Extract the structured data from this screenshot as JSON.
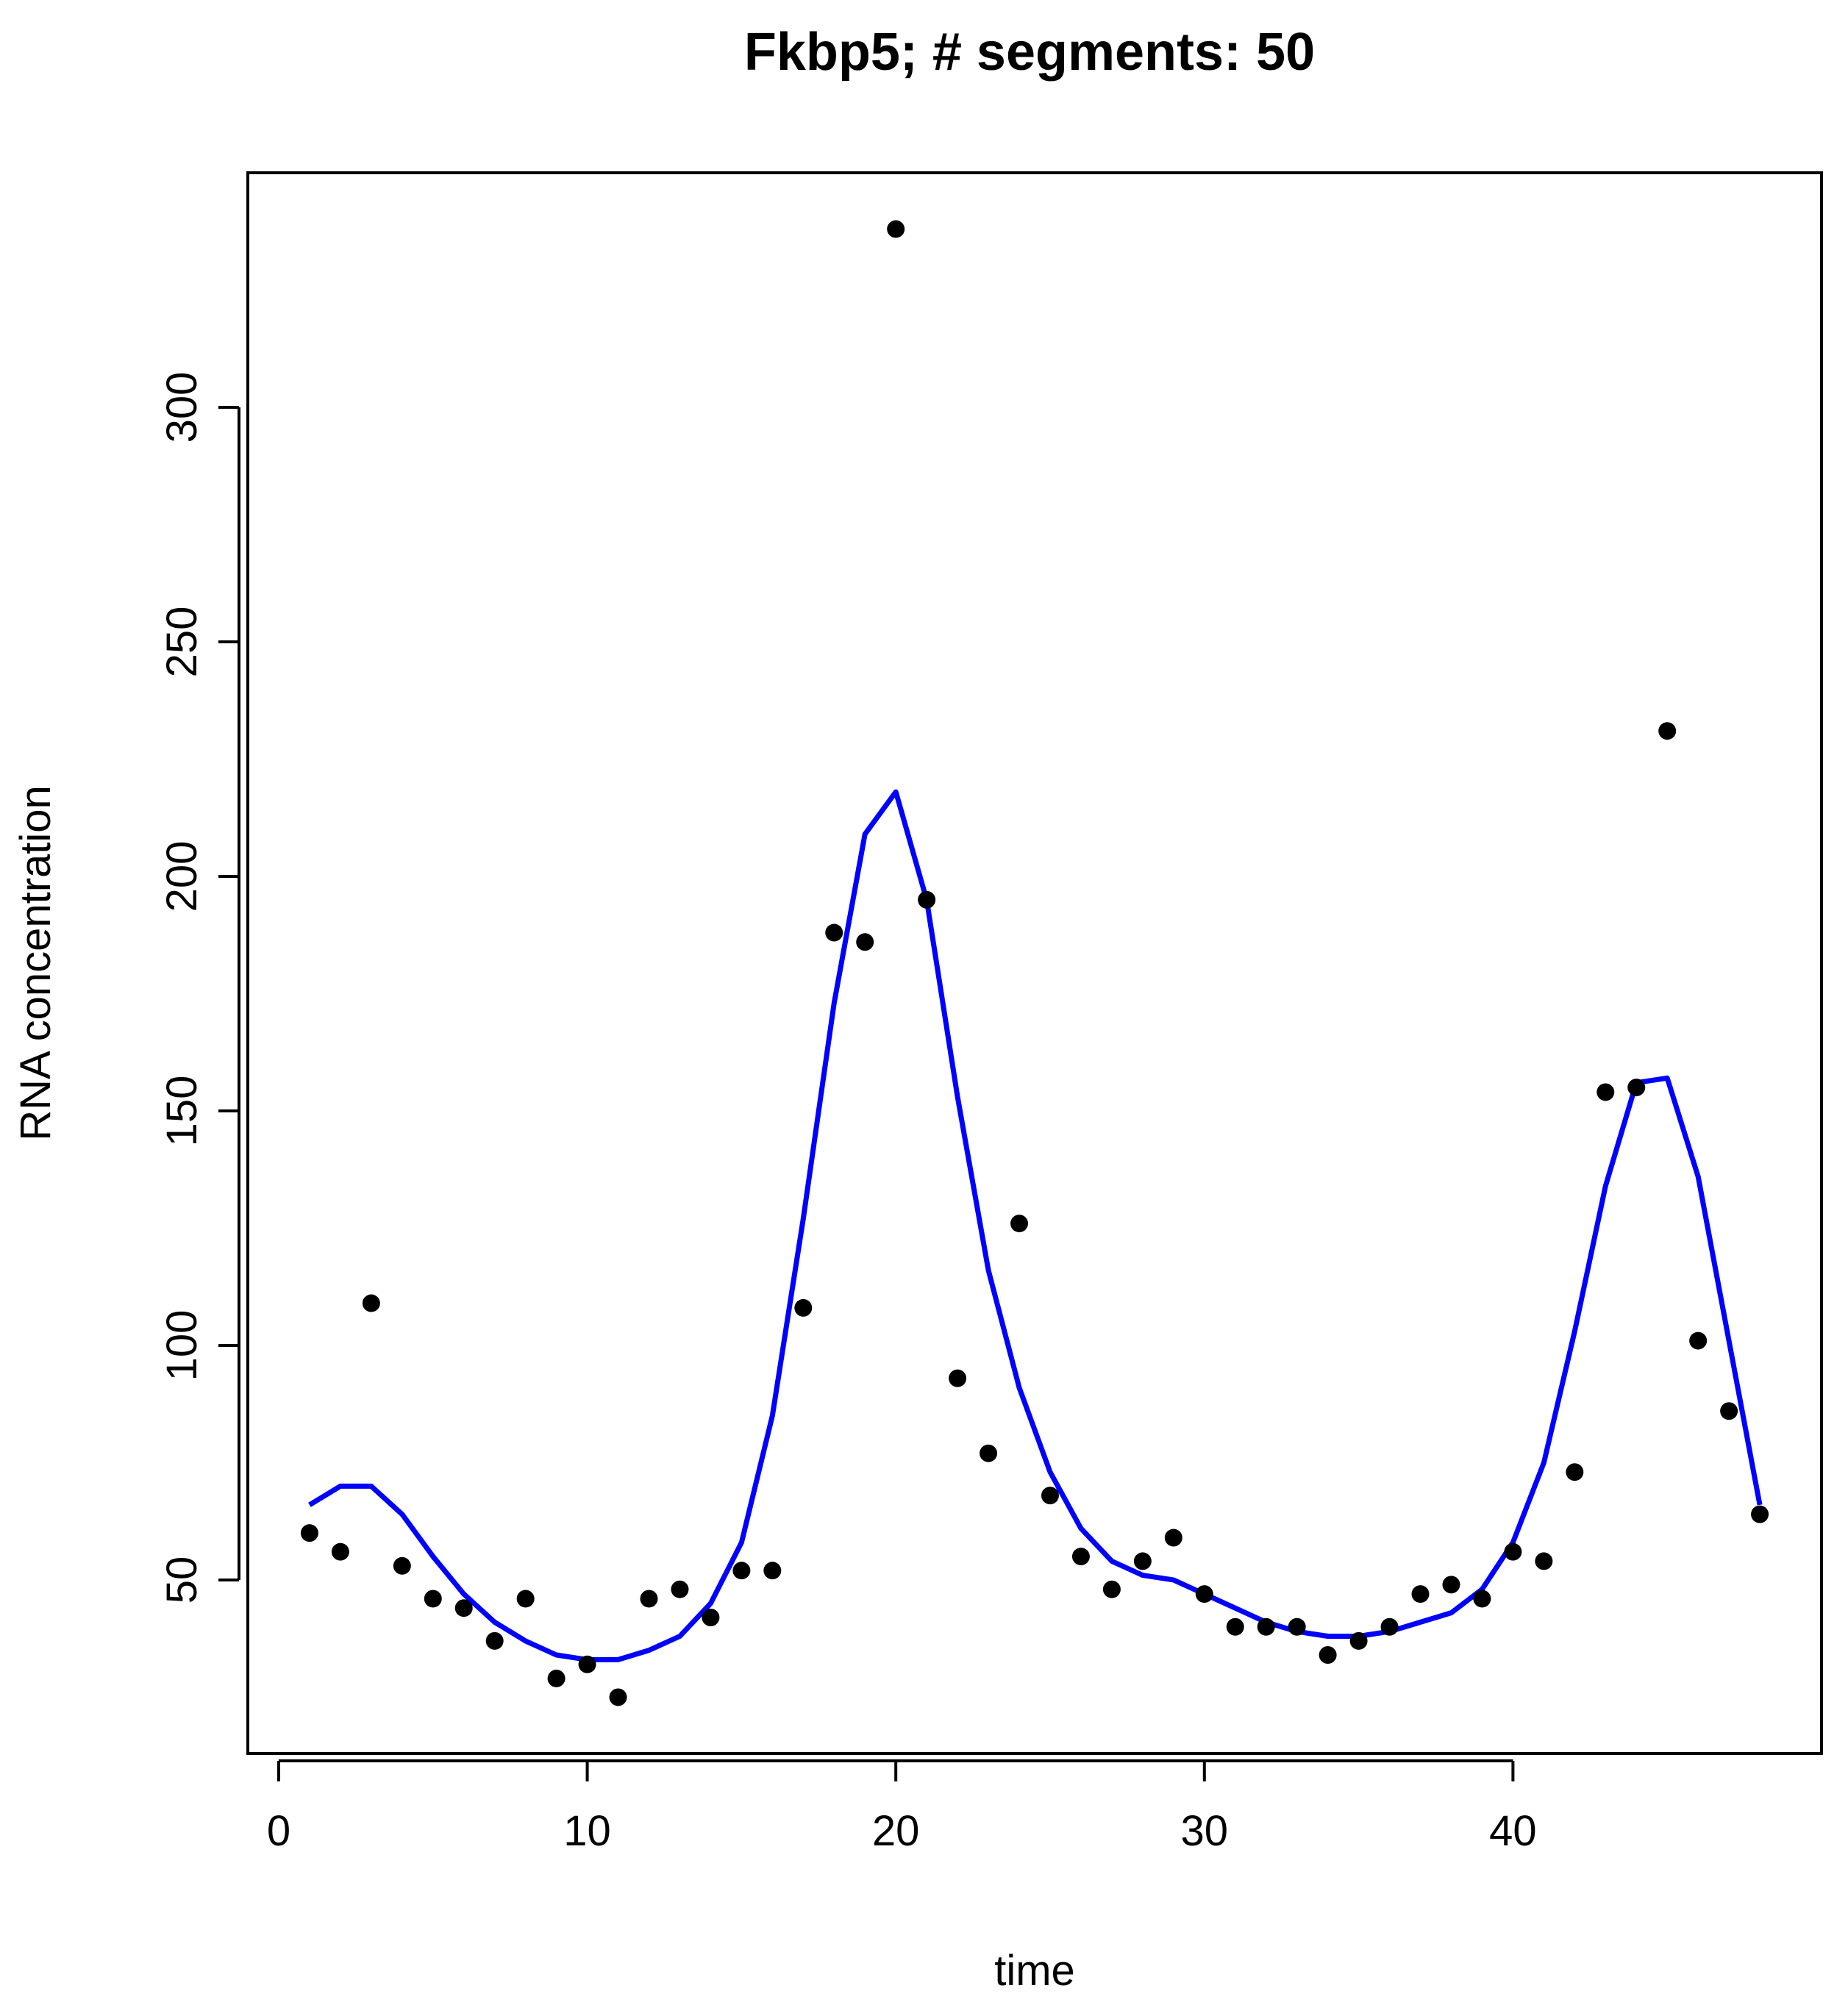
{
  "chart_data": {
    "type": "scatter",
    "title": "Fkbp5; # segments: 50",
    "xlabel": "time",
    "ylabel": "RNA concentration",
    "xlim": [
      -1,
      50
    ],
    "ylim": [
      13,
      350
    ],
    "xticks": [
      0,
      10,
      20,
      30,
      40
    ],
    "yticks": [
      50,
      100,
      150,
      200,
      250,
      300
    ],
    "grid": false,
    "legend": "none",
    "colors": {
      "points": "#000000",
      "fit_line": "#0000ff",
      "frame": "#000000"
    },
    "series": [
      {
        "kind": "points",
        "x": [
          1,
          2,
          3,
          4,
          5,
          6,
          7,
          8,
          9,
          10,
          11,
          12,
          13,
          14,
          15,
          16,
          17,
          18,
          19,
          20,
          21,
          22,
          23,
          24,
          25,
          26,
          27,
          28,
          29,
          30,
          31,
          32,
          33,
          34,
          35,
          36,
          37,
          38,
          39,
          40,
          41,
          42,
          43,
          44,
          45,
          46,
          47,
          48
        ],
        "y": [
          60,
          56,
          109,
          53,
          46,
          44,
          37,
          46,
          29,
          32,
          25,
          46,
          48,
          42,
          52,
          52,
          108,
          188,
          186,
          338,
          195,
          93,
          77,
          126,
          68,
          55,
          48,
          54,
          59,
          47,
          40,
          40,
          40,
          34,
          37,
          40,
          47,
          49,
          46,
          56,
          54,
          73,
          154,
          155,
          231,
          101,
          86,
          64
        ]
      },
      {
        "kind": "line",
        "x": [
          1,
          2,
          3,
          4,
          5,
          6,
          7,
          8,
          9,
          10,
          11,
          12,
          13,
          14,
          15,
          16,
          17,
          18,
          19,
          20,
          21,
          22,
          23,
          24,
          25,
          26,
          27,
          28,
          29,
          30,
          31,
          32,
          33,
          34,
          35,
          36,
          37,
          38,
          39,
          40,
          41,
          42,
          43,
          44,
          45,
          46,
          47,
          48
        ],
        "y": [
          66,
          70,
          70,
          64,
          55,
          47,
          41,
          37,
          34,
          33,
          33,
          35,
          38,
          45,
          58,
          85,
          127,
          173,
          209,
          218,
          195,
          153,
          116,
          91,
          73,
          61,
          54,
          51,
          50,
          47,
          44,
          41,
          39,
          38,
          38,
          39,
          41,
          43,
          48,
          58,
          75,
          103,
          134,
          156,
          157,
          136,
          101,
          66
        ]
      }
    ]
  }
}
